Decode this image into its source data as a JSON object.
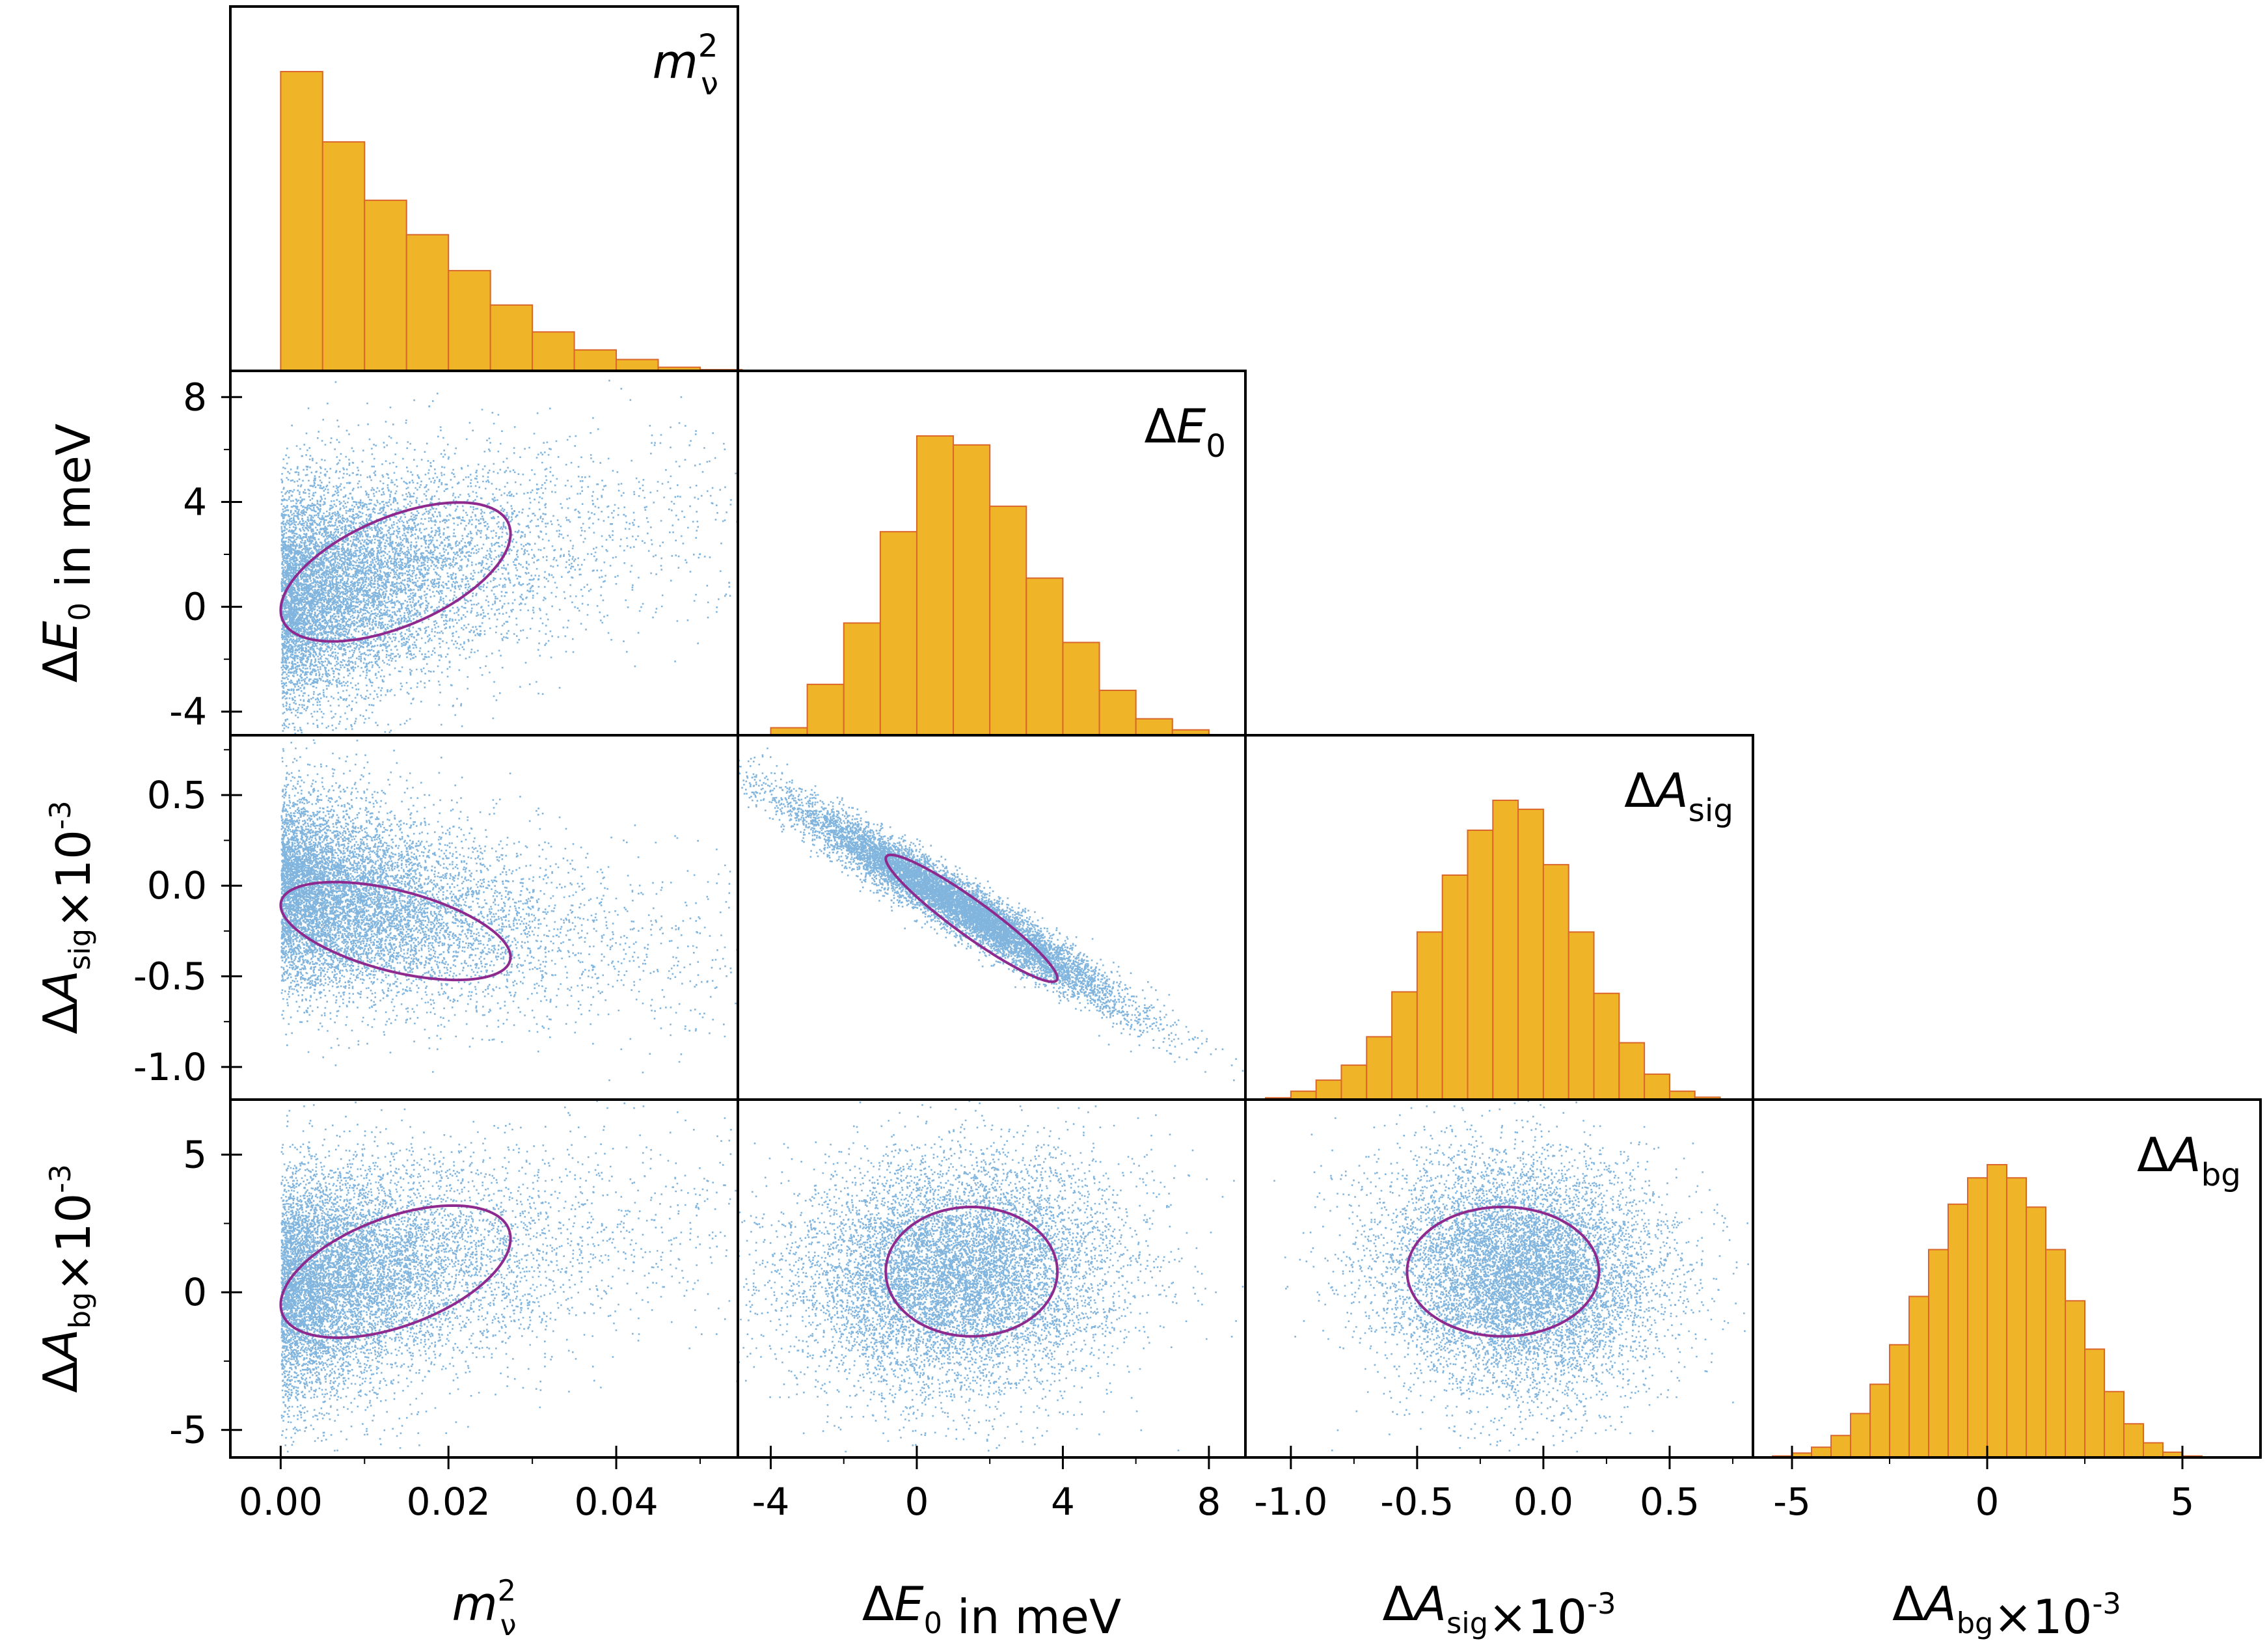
{
  "colors": {
    "histogram_fill": "#f0b428",
    "histogram_edge": "#d9662b",
    "scatter": "#1a78c2",
    "ellipse": "#8e2a8e",
    "frame": "#000000"
  },
  "chart_data": {
    "type": "corner",
    "parameters": [
      {
        "key": "mnu2",
        "symbol": "Δ",
        "main": "m",
        "sup": "2",
        "sub": "ν",
        "corner_label": "m_ν^2",
        "axis_label": "m_ν^2",
        "range": [
          -0.006,
          0.0545
        ],
        "ticks": [
          "0.00",
          "0.02",
          "0.04"
        ],
        "tick_values": [
          0.0,
          0.02,
          0.04
        ]
      },
      {
        "key": "dE0",
        "symbol": "Δ",
        "main": "E",
        "sub": "0",
        "suffix": " in meV",
        "corner_label": "ΔE_0",
        "axis_label": "ΔE_0 in meV",
        "range": [
          -4.9,
          9.0
        ],
        "ticks": [
          "-4",
          "0",
          "4",
          "8"
        ],
        "tick_values": [
          -4,
          0,
          4,
          8
        ]
      },
      {
        "key": "dAsig",
        "symbol": "Δ",
        "main": "A",
        "sub": "sig",
        "suffix": "×10",
        "suffix_sup": "-3",
        "corner_label": "ΔA_sig",
        "axis_label": "ΔA_sig×10^-3",
        "range": [
          -1.18,
          0.83
        ],
        "ticks": [
          "-1.0",
          "-0.5",
          "0.0",
          "0.5"
        ],
        "tick_values": [
          -1.0,
          -0.5,
          0.0,
          0.5
        ]
      },
      {
        "key": "dAbg",
        "symbol": "Δ",
        "main": "A",
        "sub": "bg",
        "suffix": "×10",
        "suffix_sup": "-3",
        "corner_label": "ΔA_bg",
        "axis_label": "ΔA_bg×10^-3",
        "range": [
          -6.0,
          7.0
        ],
        "ticks": [
          "-5",
          "0",
          "5"
        ],
        "tick_values": [
          -5,
          0,
          5
        ]
      }
    ],
    "histograms": [
      {
        "param": "mnu2",
        "x_start": 0.0,
        "bin_width": 0.005,
        "counts": [
          1.0,
          0.765,
          0.57,
          0.455,
          0.335,
          0.22,
          0.13,
          0.07,
          0.038,
          0.012,
          0.004
        ]
      },
      {
        "param": "dE0",
        "x_start": -4.0,
        "bin_width": 1.0,
        "counts": [
          0.025,
          0.17,
          0.375,
          0.68,
          1.0,
          0.97,
          0.765,
          0.525,
          0.31,
          0.15,
          0.055,
          0.018
        ]
      },
      {
        "param": "dAsig",
        "x_start": -1.1,
        "bin_width": 0.1,
        "counts": [
          0.006,
          0.028,
          0.065,
          0.115,
          0.21,
          0.36,
          0.56,
          0.75,
          0.9,
          1.0,
          0.97,
          0.785,
          0.56,
          0.355,
          0.19,
          0.085,
          0.028,
          0.008
        ]
      },
      {
        "param": "dAbg",
        "x_start": -5.5,
        "bin_width": 0.5,
        "counts": [
          0.005,
          0.015,
          0.035,
          0.075,
          0.15,
          0.25,
          0.385,
          0.55,
          0.71,
          0.865,
          0.955,
          1.0,
          0.955,
          0.855,
          0.71,
          0.535,
          0.37,
          0.225,
          0.115,
          0.05,
          0.018,
          0.005
        ]
      }
    ],
    "scatter_panels": [
      {
        "x": "mnu2",
        "y": "dE0",
        "ellipse": {
          "center": [
            0.0137,
            1.33
          ],
          "sx": 0.0137,
          "sy": 2.65,
          "rho": 0.55
        }
      },
      {
        "x": "mnu2",
        "y": "dAsig",
        "ellipse": {
          "center": [
            0.0137,
            -0.25
          ],
          "sx": 0.0137,
          "sy": 0.27,
          "rho": -0.53
        }
      },
      {
        "x": "dE0",
        "y": "dAsig",
        "ellipse": {
          "center": [
            1.5,
            -0.18
          ],
          "sx": 2.35,
          "sy": 0.35,
          "rho": -0.94
        }
      },
      {
        "x": "mnu2",
        "y": "dAbg",
        "ellipse": {
          "center": [
            0.0137,
            0.75
          ],
          "sx": 0.0137,
          "sy": 2.4,
          "rho": 0.5
        }
      },
      {
        "x": "dE0",
        "y": "dAbg",
        "ellipse": {
          "center": [
            1.5,
            0.75
          ],
          "sx": 2.35,
          "sy": 2.35,
          "rho": 0.0
        }
      },
      {
        "x": "dAsig",
        "y": "dAbg",
        "ellipse": {
          "center": [
            -0.16,
            0.75
          ],
          "sx": 0.38,
          "sy": 2.35,
          "rho": 0.0
        }
      }
    ],
    "samples_per_panel": 9000,
    "contour": "1σ ellipse"
  }
}
